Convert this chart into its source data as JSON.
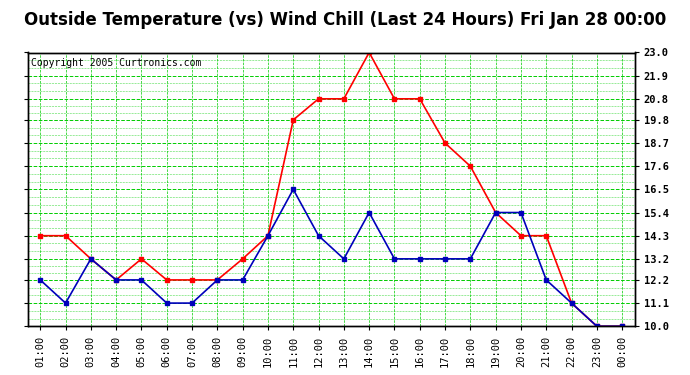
{
  "title": "Outside Temperature (vs) Wind Chill (Last 24 Hours) Fri Jan 28 00:00",
  "copyright": "Copyright 2005 Curtronics.com",
  "x_labels": [
    "01:00",
    "02:00",
    "03:00",
    "04:00",
    "05:00",
    "06:00",
    "07:00",
    "08:00",
    "09:00",
    "10:00",
    "11:00",
    "12:00",
    "13:00",
    "14:00",
    "15:00",
    "16:00",
    "17:00",
    "18:00",
    "19:00",
    "20:00",
    "21:00",
    "22:00",
    "23:00",
    "00:00"
  ],
  "outside_temp": [
    14.3,
    14.3,
    13.2,
    12.2,
    13.2,
    12.2,
    12.2,
    12.2,
    13.2,
    14.3,
    19.8,
    20.8,
    20.8,
    23.0,
    20.8,
    20.8,
    18.7,
    17.6,
    15.4,
    14.3,
    14.3,
    11.1,
    10.0,
    10.0
  ],
  "wind_chill": [
    12.2,
    11.1,
    13.2,
    12.2,
    12.2,
    11.1,
    11.1,
    12.2,
    12.2,
    14.3,
    16.5,
    14.3,
    13.2,
    15.4,
    13.2,
    13.2,
    13.2,
    13.2,
    15.4,
    15.4,
    12.2,
    11.1,
    10.0,
    10.0
  ],
  "temp_color": "#ff0000",
  "windchill_color": "#0000bb",
  "background_color": "#ffffff",
  "grid_color": "#00cc00",
  "ymin": 10.0,
  "ymax": 23.0,
  "yticks": [
    10.0,
    11.1,
    12.2,
    13.2,
    14.3,
    15.4,
    16.5,
    17.6,
    18.7,
    19.8,
    20.8,
    21.9,
    23.0
  ],
  "title_fontsize": 12,
  "tick_fontsize": 7.5,
  "copyright_fontsize": 7
}
